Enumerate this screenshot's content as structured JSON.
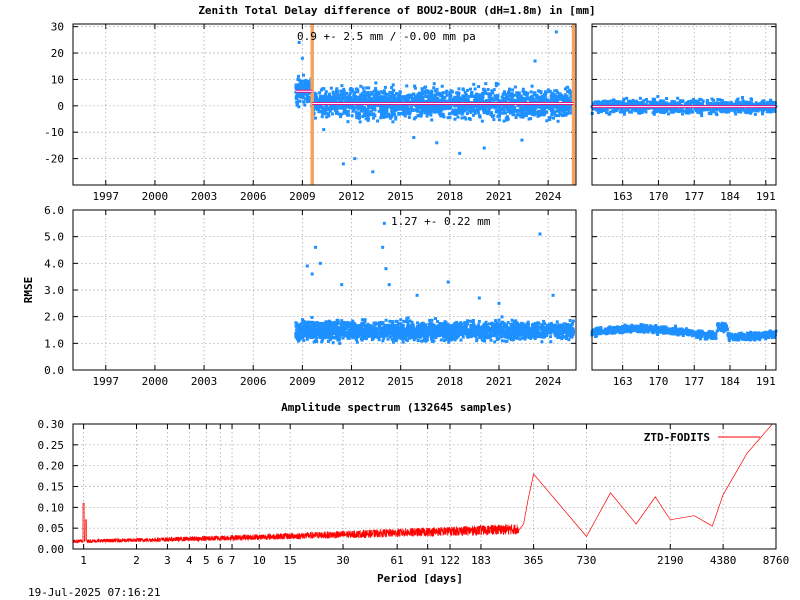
{
  "title": "Zenith Total Delay difference of BOU2-BOUR (dH=1.8m) in [mm]",
  "timestamp": "19-Jul-2025 07:16:21",
  "colors": {
    "points": "#1e90ff",
    "mean_line": "#e0148c",
    "mean_inner": "#ffffff",
    "event_line": "#f4a460",
    "spectrum": "#ff0000"
  },
  "chart_data": [
    {
      "type": "scatter",
      "name": "zenith-delay-difference-main",
      "annotation": "0.9 +-   2.5 mm / -0.00 mm pa",
      "ylabel": "",
      "xlim": [
        1995,
        2025.7
      ],
      "ylim": [
        -30,
        31
      ],
      "x_ticks": [
        "1997",
        "2000",
        "2003",
        "2006",
        "2009",
        "2012",
        "2015",
        "2018",
        "2021",
        "2024"
      ],
      "y_ticks": [
        "30",
        "20",
        "10",
        "0",
        "-10",
        "-20"
      ],
      "data_start": 2008.6,
      "data_end": 2025.55,
      "vertical_markers": [
        2009.6,
        2025.55
      ],
      "mean_segments": [
        {
          "x": [
            2008.6,
            2009.6
          ],
          "y": 5.5
        },
        {
          "x": [
            2009.6,
            2025.55
          ],
          "y": 0.9
        }
      ],
      "spread": 2.5,
      "outliers": [
        [
          2008.8,
          24
        ],
        [
          2009.0,
          18
        ],
        [
          2010.3,
          -9
        ],
        [
          2011.5,
          -22
        ],
        [
          2012.2,
          -20
        ],
        [
          2013.3,
          -25
        ],
        [
          2015.8,
          -12
        ],
        [
          2017.2,
          -14
        ],
        [
          2018.6,
          -18
        ],
        [
          2020.1,
          -16
        ],
        [
          2022.4,
          -13
        ],
        [
          2023.2,
          17
        ],
        [
          2024.5,
          28
        ]
      ]
    },
    {
      "type": "scatter",
      "name": "zenith-delay-difference-recent",
      "xlim": [
        157,
        193
      ],
      "ylim": [
        -30,
        31
      ],
      "x_ticks": [
        "163",
        "170",
        "177",
        "184",
        "191"
      ],
      "mean": -0.3,
      "spread": 1.5
    },
    {
      "type": "scatter",
      "name": "rmse-main",
      "annotation": "1.27 +-  0.22 mm",
      "ylabel": "RMSE",
      "xlim": [
        1995,
        2025.7
      ],
      "ylim": [
        0,
        6
      ],
      "x_ticks": [
        "1997",
        "2000",
        "2003",
        "2006",
        "2009",
        "2012",
        "2015",
        "2018",
        "2021",
        "2024"
      ],
      "y_ticks": [
        "6.0",
        "5.0",
        "4.0",
        "3.0",
        "2.0",
        "1.0",
        "0.0"
      ],
      "data_start": 2008.6,
      "data_end": 2025.55,
      "mean": 1.27,
      "spread": 0.22,
      "outliers": [
        [
          2009.3,
          3.9
        ],
        [
          2009.6,
          3.6
        ],
        [
          2009.8,
          4.6
        ],
        [
          2010.1,
          4.0
        ],
        [
          2011.4,
          3.2
        ],
        [
          2013.9,
          4.6
        ],
        [
          2014.0,
          5.5
        ],
        [
          2014.1,
          3.8
        ],
        [
          2014.3,
          3.2
        ],
        [
          2016.0,
          2.8
        ],
        [
          2017.9,
          3.3
        ],
        [
          2019.8,
          2.7
        ],
        [
          2021.0,
          2.5
        ],
        [
          2023.5,
          5.1
        ],
        [
          2024.3,
          2.8
        ]
      ]
    },
    {
      "type": "scatter",
      "name": "rmse-recent",
      "xlim": [
        157,
        193
      ],
      "ylim": [
        0,
        6
      ],
      "x_ticks": [
        "163",
        "170",
        "177",
        "184",
        "191"
      ],
      "mean": 1.4,
      "spread": 0.12
    },
    {
      "type": "line",
      "name": "amplitude-spectrum",
      "title": "Amplitude spectrum (132645 samples)",
      "xlabel": "Period [days]",
      "legend": "ZTD-FODITS",
      "legend_position": "top-right",
      "x_scale": "log",
      "xlim": [
        0.87,
        8760
      ],
      "ylim": [
        0,
        0.3
      ],
      "x_ticks": [
        "1",
        "2",
        "3",
        "4",
        "5",
        "6",
        "7",
        "10",
        "15",
        "30",
        "61",
        "91",
        "122",
        "183",
        "365",
        "730",
        "2190",
        "4380",
        "8760"
      ],
      "y_ticks": [
        "0.30",
        "0.25",
        "0.20",
        "0.15",
        "0.10",
        "0.05",
        "0.00"
      ],
      "peaks": [
        [
          1,
          0.11
        ],
        [
          365,
          0.18
        ],
        [
          730,
          0.03
        ],
        [
          1000,
          0.135
        ],
        [
          1400,
          0.06
        ],
        [
          1800,
          0.125
        ],
        [
          2190,
          0.07
        ],
        [
          3000,
          0.08
        ],
        [
          3800,
          0.055
        ],
        [
          4380,
          0.13
        ],
        [
          6000,
          0.23
        ],
        [
          8760,
          0.31
        ]
      ]
    }
  ]
}
